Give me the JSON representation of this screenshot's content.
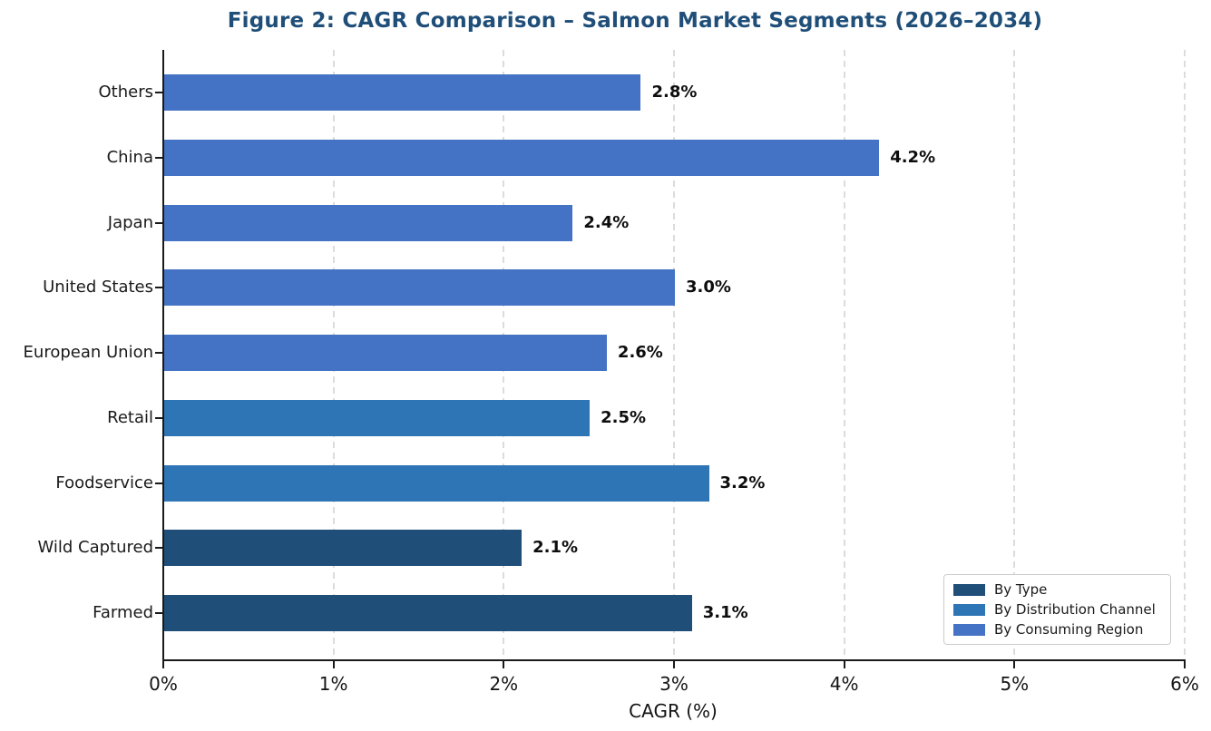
{
  "chart_data": {
    "type": "bar",
    "orientation": "horizontal",
    "title": "Figure 2: CAGR Comparison – Salmon Market Segments (2026–2034)",
    "title_color": "#1f4e79",
    "xlabel": "CAGR (%)",
    "xlim": [
      0,
      6
    ],
    "xticks": [
      {
        "value": 0,
        "label": "0%"
      },
      {
        "value": 1,
        "label": "1%"
      },
      {
        "value": 2,
        "label": "2%"
      },
      {
        "value": 3,
        "label": "3%"
      },
      {
        "value": 4,
        "label": "4%"
      },
      {
        "value": 5,
        "label": "5%"
      },
      {
        "value": 6,
        "label": "6%"
      }
    ],
    "grid": "vertical-dashed",
    "gridline_color": "#dcdcdc",
    "legend_position": "lower right",
    "groups": [
      {
        "name": "By Type",
        "color": "#1f4e79"
      },
      {
        "name": "By Distribution Channel",
        "color": "#2e75b6"
      },
      {
        "name": "By Consuming Region",
        "color": "#4472c4"
      }
    ],
    "bars": [
      {
        "category": "Others",
        "value": 2.8,
        "label": "2.8%",
        "group": "By Consuming Region"
      },
      {
        "category": "China",
        "value": 4.2,
        "label": "4.2%",
        "group": "By Consuming Region"
      },
      {
        "category": "Japan",
        "value": 2.4,
        "label": "2.4%",
        "group": "By Consuming Region"
      },
      {
        "category": "United States",
        "value": 3.0,
        "label": "3.0%",
        "group": "By Consuming Region"
      },
      {
        "category": "European Union",
        "value": 2.6,
        "label": "2.6%",
        "group": "By Consuming Region"
      },
      {
        "category": "Retail",
        "value": 2.5,
        "label": "2.5%",
        "group": "By Distribution Channel"
      },
      {
        "category": "Foodservice",
        "value": 3.2,
        "label": "3.2%",
        "group": "By Distribution Channel"
      },
      {
        "category": "Wild Captured",
        "value": 2.1,
        "label": "2.1%",
        "group": "By Type"
      },
      {
        "category": "Farmed",
        "value": 3.1,
        "label": "3.1%",
        "group": "By Type"
      }
    ]
  }
}
